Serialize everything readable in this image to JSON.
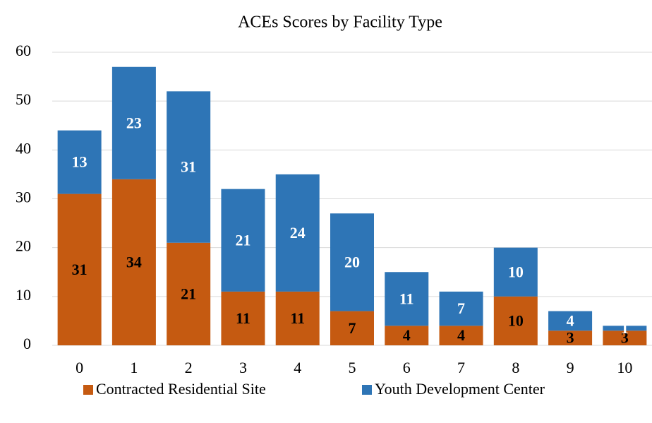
{
  "chart_data": {
    "type": "bar",
    "stacked": true,
    "title": "ACEs Scores by Facility Type",
    "categories": [
      "0",
      "1",
      "2",
      "3",
      "4",
      "5",
      "6",
      "7",
      "8",
      "9",
      "10"
    ],
    "series": [
      {
        "name": "Contracted Residential Site",
        "color": "#c55a11",
        "label_color": "#000000",
        "values": [
          31,
          34,
          21,
          11,
          11,
          7,
          4,
          4,
          10,
          3,
          3
        ]
      },
      {
        "name": "Youth Development Center",
        "color": "#2e75b6",
        "label_color": "#ffffff",
        "values": [
          13,
          23,
          31,
          21,
          24,
          20,
          11,
          7,
          10,
          4,
          1
        ]
      }
    ],
    "ylim": [
      0,
      60
    ],
    "yticks": [
      0,
      10,
      20,
      30,
      40,
      50,
      60
    ],
    "grid": true,
    "legend": "bottom"
  }
}
